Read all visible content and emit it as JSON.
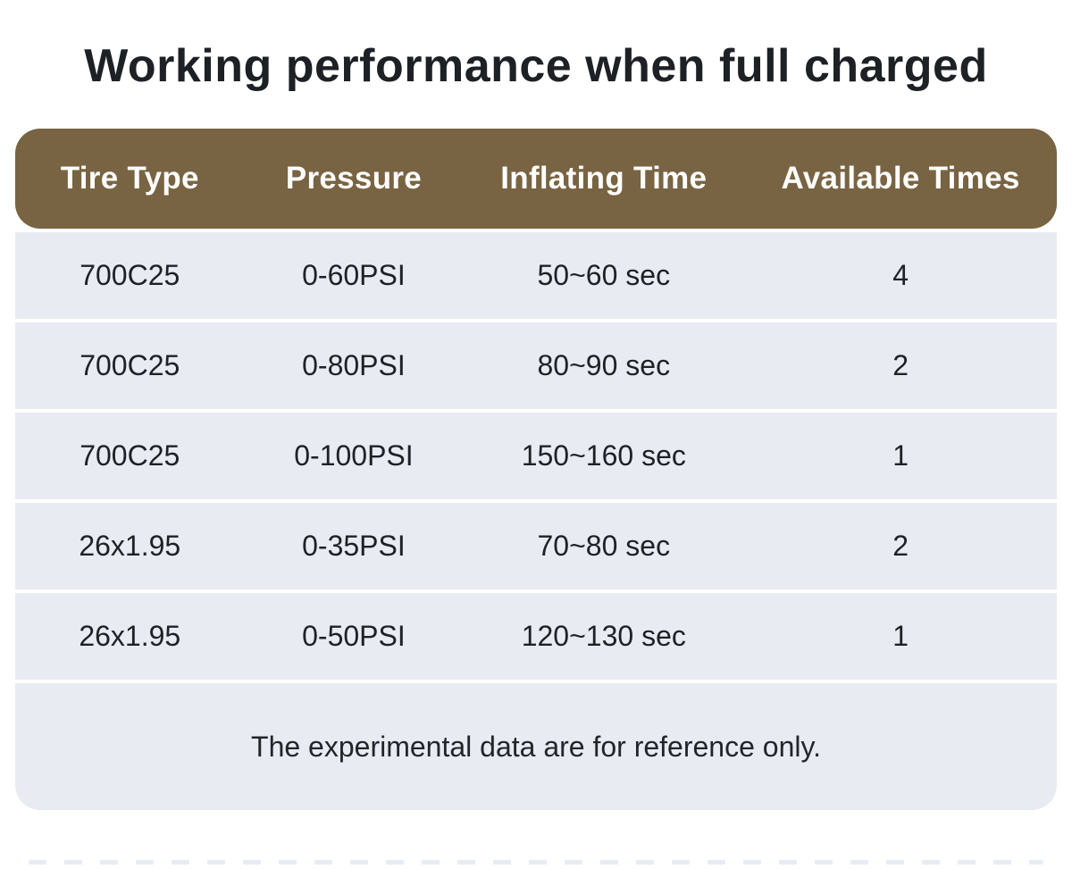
{
  "chart_data": {
    "type": "table",
    "title": "Working performance when full charged",
    "columns": [
      "Tire Type",
      "Pressure",
      "Inflating Time",
      "Available Times"
    ],
    "rows": [
      [
        "700C25",
        "0-60PSI",
        "50~60 sec",
        "4"
      ],
      [
        "700C25",
        "0-80PSI",
        "80~90 sec",
        "2"
      ],
      [
        "700C25",
        "0-100PSI",
        "150~160 sec",
        "1"
      ],
      [
        "26x1.95",
        "0-35PSI",
        "70~80 sec",
        "2"
      ],
      [
        "26x1.95",
        "0-50PSI",
        "120~130 sec",
        "1"
      ]
    ],
    "footnote": "The experimental data are for reference only.",
    "layout": "header band with rounded corners, striped single-tone rows, footnote band with rounded bottom corners"
  },
  "colors": {
    "header_bg": "#786442",
    "header_text": "#fdfdfd",
    "row_bg": "#e8ebf1",
    "text": "#1e2226",
    "page_bg": "#ffffff",
    "dash": "#e7ecf2"
  }
}
